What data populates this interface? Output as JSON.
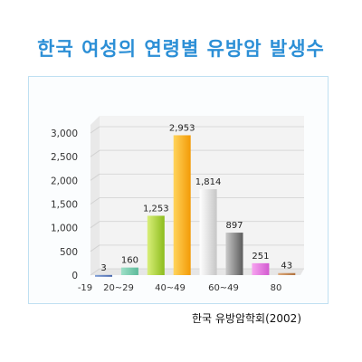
{
  "page": {
    "title": "한국 여성의 연령별 유방암 발생수",
    "source": "한국 유방암학회(2002)"
  },
  "colors": {
    "title": "#2c8fd6",
    "frame_border": "#bfe0f2"
  },
  "chart_data": {
    "type": "bar",
    "title": "",
    "xlabel": "",
    "ylabel": "",
    "ylim": [
      0,
      3000
    ],
    "yticks": [
      0,
      500,
      1000,
      1500,
      2000,
      2500,
      3000
    ],
    "ytick_labels": [
      "0",
      "500",
      "1,000",
      "1,500",
      "2,000",
      "2,500",
      "3,000"
    ],
    "xtick_labels": [
      "-19",
      "20~29",
      "40~49",
      "60~49",
      "80"
    ],
    "grid": true,
    "values": [
      3,
      160,
      1253,
      2953,
      1814,
      897,
      251,
      43
    ],
    "value_labels": [
      "3",
      "160",
      "1,253",
      "2,953",
      "1,814",
      "897",
      "251",
      "43"
    ],
    "bar_colors": [
      [
        "#7f9fd6",
        "#4a68ad"
      ],
      [
        "#9fe0c8",
        "#5cba9a"
      ],
      [
        "#d9ef7a",
        "#8cbc1c"
      ],
      [
        "#ffd45c",
        "#f39a06"
      ],
      [
        "#ffffff",
        "#c6c6c6"
      ],
      [
        "#c9c9c9",
        "#5b5b5b"
      ],
      [
        "#f7a4f0",
        "#d25ad0"
      ],
      [
        "#ddaa7c",
        "#b0713c"
      ]
    ]
  }
}
